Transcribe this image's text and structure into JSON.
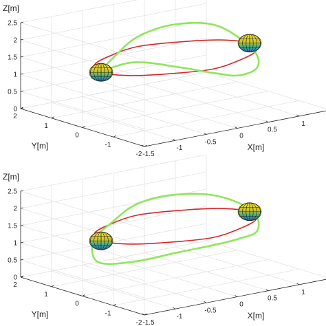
{
  "chart_data": [
    {
      "type": "line",
      "panel": "top",
      "title": "",
      "xlabel": "X[m]",
      "ylabel": "Y[m]",
      "zlabel": "Z[m]",
      "xlim": [
        -1.5,
        1.5
      ],
      "ylim": [
        -2,
        2
      ],
      "zlim": [
        0,
        2.5
      ],
      "x_ticks": [
        "-1.5",
        "-1",
        "-0.5",
        "0",
        "0.5",
        "1",
        "1.5"
      ],
      "y_ticks": [
        "-2",
        "-1",
        "0",
        "1",
        "2"
      ],
      "z_ticks": [
        "0",
        "0.5",
        "1",
        "1.5",
        "2",
        "2.5"
      ],
      "grid": true,
      "series": [
        {
          "color": "#d62728",
          "x": [
            1.2,
            1.0,
            0.5,
            0.0,
            -0.5,
            -1.0,
            -1.2,
            -1.0,
            -0.5,
            0.0,
            0.5,
            1.0,
            1.2
          ],
          "y": [
            0.0,
            0.6,
            1.0,
            1.2,
            1.0,
            0.6,
            0.0,
            -0.6,
            -1.0,
            -1.2,
            -1.0,
            -0.6,
            0.0
          ],
          "z": [
            1.5,
            1.5,
            1.5,
            1.5,
            1.5,
            1.5,
            1.5,
            1.5,
            1.5,
            1.5,
            1.5,
            1.5,
            1.5
          ]
        },
        {
          "color": "#8ee65a",
          "x": [
            1.25,
            1.0,
            0.5,
            0.0,
            -0.5,
            -1.0,
            -1.25,
            -1.0,
            -0.5,
            0.0,
            0.5,
            1.0,
            1.25
          ],
          "y": [
            0.0,
            0.65,
            1.05,
            1.25,
            1.05,
            0.65,
            0.0,
            -0.65,
            -1.05,
            -1.25,
            -1.05,
            -0.65,
            0.0
          ],
          "z": [
            1.3,
            1.9,
            2.0,
            1.75,
            1.35,
            1.1,
            1.5,
            1.9,
            1.7,
            1.4,
            1.1,
            1.05,
            1.3
          ]
        }
      ],
      "markers": [
        {
          "name": "ellipsoid-right",
          "x": 1.2,
          "y": 0.0,
          "z": 1.5
        },
        {
          "name": "ellipsoid-left",
          "x": -1.2,
          "y": 0.0,
          "z": 1.5
        }
      ]
    },
    {
      "type": "line",
      "panel": "bottom",
      "title": "",
      "xlabel": "X[m]",
      "ylabel": "Y[m]",
      "zlabel": "Z[m]",
      "xlim": [
        -1.5,
        1.5
      ],
      "ylim": [
        -2,
        2
      ],
      "zlim": [
        0,
        2.5
      ],
      "x_ticks": [
        "-1.5",
        "-1",
        "-0.5",
        "0",
        "0.5",
        "1",
        "1.5"
      ],
      "y_ticks": [
        "-2",
        "-1",
        "0",
        "1",
        "2"
      ],
      "z_ticks": [
        "0",
        "0.5",
        "1",
        "1.5",
        "2",
        "2.5"
      ],
      "grid": true,
      "series": [
        {
          "color": "#d62728",
          "x": [
            1.2,
            1.0,
            0.5,
            0.0,
            -0.5,
            -1.0,
            -1.2,
            -1.0,
            -0.5,
            0.0,
            0.5,
            1.0,
            1.2
          ],
          "y": [
            0.0,
            0.6,
            1.0,
            1.2,
            1.0,
            0.6,
            0.0,
            -0.6,
            -1.0,
            -1.2,
            -1.0,
            -0.6,
            0.0
          ],
          "z": [
            1.5,
            1.5,
            1.5,
            1.5,
            1.5,
            1.5,
            1.5,
            1.5,
            1.5,
            1.5,
            1.5,
            1.5,
            1.5
          ]
        },
        {
          "color": "#8ee65a",
          "x": [
            1.25,
            1.0,
            0.5,
            0.0,
            -0.5,
            -1.0,
            -1.25,
            -1.0,
            -0.5,
            0.0,
            0.5,
            1.0,
            1.25
          ],
          "y": [
            0.0,
            0.65,
            1.05,
            1.25,
            1.05,
            0.65,
            0.0,
            -0.65,
            -1.05,
            -1.25,
            -1.05,
            -0.65,
            0.0
          ],
          "z": [
            1.5,
            1.85,
            1.95,
            1.8,
            1.5,
            1.25,
            0.9,
            1.0,
            1.2,
            1.3,
            1.25,
            1.2,
            1.5
          ]
        }
      ],
      "markers": [
        {
          "name": "ellipsoid-right",
          "x": 1.2,
          "y": 0.0,
          "z": 1.5
        },
        {
          "name": "ellipsoid-left",
          "x": -1.2,
          "y": 0.0,
          "z": 1.5
        }
      ]
    }
  ]
}
